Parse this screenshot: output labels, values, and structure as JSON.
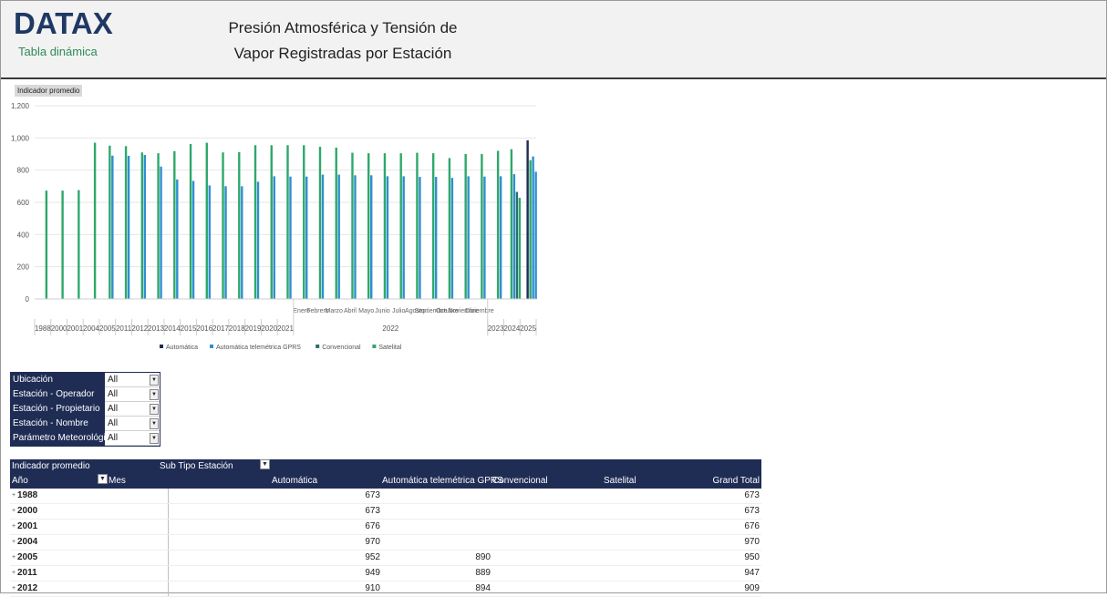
{
  "header": {
    "logo": "DATAX",
    "logo_sub": "Tabla dinámica",
    "title_line1": "Presión Atmosférica y Tensión de",
    "title_line2": "Vapor Registradas por Estación"
  },
  "chart": {
    "measure_label": "Indicador promedio"
  },
  "chart_data": {
    "type": "bar",
    "y_ticks": [
      "0",
      "200",
      "400",
      "600",
      "800",
      "1,000",
      "1,200"
    ],
    "ylim": [
      0,
      1200
    ],
    "series": [
      {
        "name": "Automática",
        "color": "#1f2d55"
      },
      {
        "name": "Automática telemétrica GPRS",
        "color": "#2e8fd0"
      },
      {
        "name": "Convencional",
        "color": "#2c6e70"
      },
      {
        "name": "Satelital",
        "color": "#2ea86b"
      }
    ],
    "x_groups": [
      {
        "year": "1988",
        "months": [],
        "values": {
          "green": 673
        }
      },
      {
        "year": "2000",
        "months": [],
        "values": {
          "green": 673
        }
      },
      {
        "year": "2001",
        "months": [],
        "values": {
          "green": 676
        }
      },
      {
        "year": "2004",
        "months": [],
        "values": {
          "green": 970
        }
      },
      {
        "year": "2005",
        "values": {
          "green": 952,
          "blue": 890
        }
      },
      {
        "year": "2011",
        "values": {
          "green": 949,
          "blue": 889
        }
      },
      {
        "year": "2012",
        "values": {
          "green": 910,
          "blue": 894
        }
      },
      {
        "year": "2013",
        "values": {
          "green": 905,
          "blue": 822
        }
      },
      {
        "year": "2014",
        "values": {
          "green": 918,
          "blue": 742
        }
      },
      {
        "year": "2015",
        "values": {
          "green": 962,
          "blue": 733
        }
      },
      {
        "year": "2016",
        "values": {
          "green": 970,
          "blue": 705
        }
      },
      {
        "year": "2017",
        "values": {
          "green": 910,
          "blue": 700
        }
      },
      {
        "year": "2018",
        "values": {
          "green": 912,
          "blue": 700
        }
      },
      {
        "year": "2019",
        "values": {
          "green": 955,
          "blue": 728
        }
      },
      {
        "year": "2020",
        "values": {
          "green": 955,
          "blue": 762
        }
      },
      {
        "year": "2021",
        "values": {
          "green": 955,
          "blue": 760
        }
      }
    ],
    "months_2022": [
      "Enero",
      "Febrero",
      "Marzo",
      "Abril",
      "Mayo",
      "Junio",
      "Julio",
      "Agosto",
      "Septiembre",
      "Octubre",
      "Noviembre",
      "Diciembre"
    ],
    "values_2022": [
      {
        "green": 955,
        "blue": 760
      },
      {
        "green": 945,
        "blue": 772
      },
      {
        "green": 940,
        "blue": 772
      },
      {
        "green": 908,
        "blue": 768
      },
      {
        "green": 905,
        "blue": 768
      },
      {
        "green": 905,
        "blue": 762
      },
      {
        "green": 905,
        "blue": 762
      },
      {
        "green": 908,
        "blue": 758
      },
      {
        "green": 905,
        "blue": 758
      },
      {
        "green": 875,
        "blue": 752
      },
      {
        "green": 900,
        "blue": 762
      },
      {
        "green": 900,
        "blue": 760
      }
    ],
    "year_2022": "2022",
    "tail_groups": [
      {
        "year": "2023",
        "values": {
          "green": 920,
          "blue": 762
        }
      },
      {
        "year": "2024",
        "values": {
          "green": 930,
          "blue": 775,
          "teal": 665,
          "green2": 628
        }
      },
      {
        "year": "2025",
        "values": {
          "navy": 985,
          "blue": 885,
          "blue2": 790,
          "green": 862
        }
      }
    ]
  },
  "filters": [
    {
      "label": "Ubicación",
      "value": "All"
    },
    {
      "label": "Estación - Operador",
      "value": "All"
    },
    {
      "label": "Estación - Propietario",
      "value": "All"
    },
    {
      "label": "Estación - Nombre",
      "value": "All"
    },
    {
      "label": "Parámetro Meteorológico",
      "value": "All"
    }
  ],
  "pivot": {
    "measure": "Indicador promedio",
    "col_field": "Sub Tipo Estación",
    "row_field_year": "Año",
    "row_field_month": "Mes",
    "columns": [
      "Automática",
      "Automática telemétrica GPRS",
      "Convencional",
      "Satelital",
      "Grand Total"
    ],
    "rows": [
      {
        "year": "1988",
        "automatica": "673",
        "gprs": "",
        "total": "673"
      },
      {
        "year": "2000",
        "automatica": "673",
        "gprs": "",
        "total": "673"
      },
      {
        "year": "2001",
        "automatica": "676",
        "gprs": "",
        "total": "676"
      },
      {
        "year": "2004",
        "automatica": "970",
        "gprs": "",
        "total": "970"
      },
      {
        "year": "2005",
        "automatica": "952",
        "gprs": "890",
        "total": "950"
      },
      {
        "year": "2011",
        "automatica": "949",
        "gprs": "889",
        "total": "947"
      },
      {
        "year": "2012",
        "automatica": "910",
        "gprs": "894",
        "total": "909"
      }
    ]
  }
}
